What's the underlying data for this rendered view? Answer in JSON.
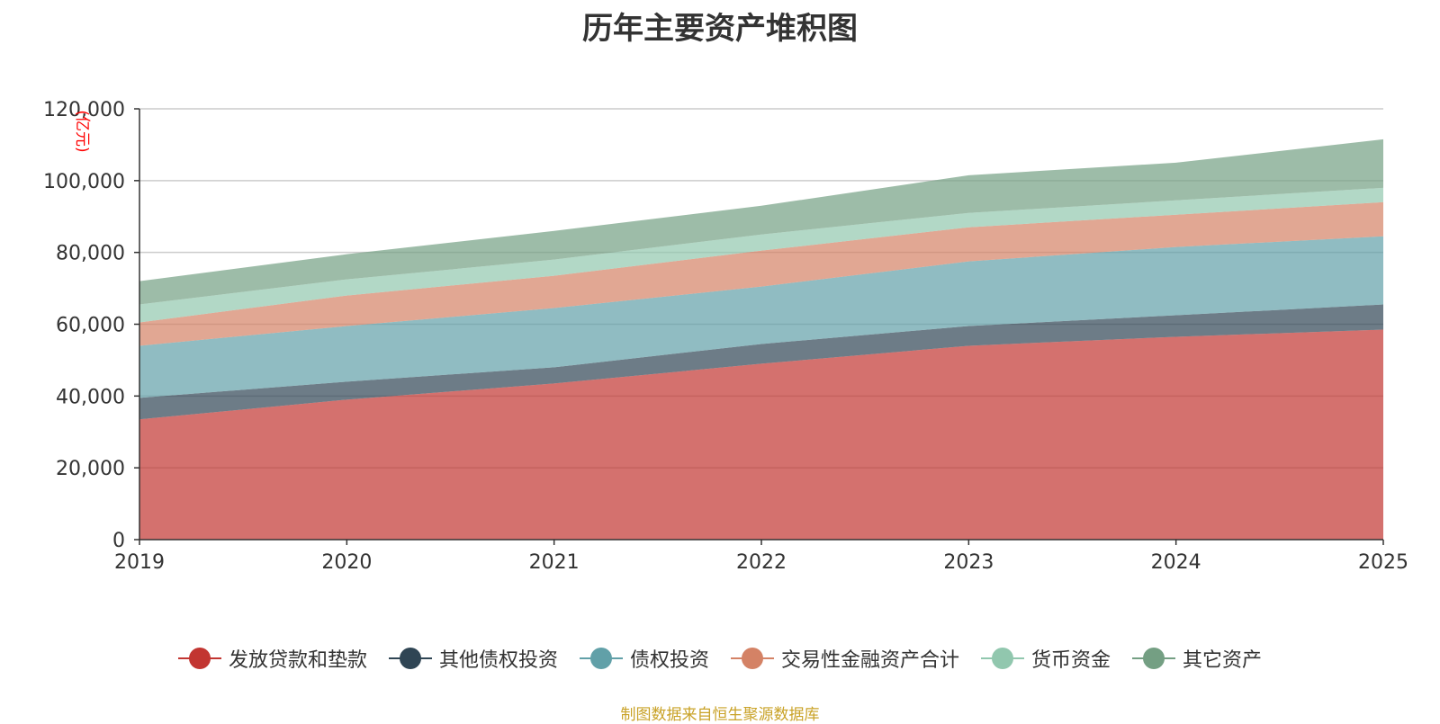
{
  "chart_data": {
    "type": "area",
    "stacked": true,
    "title": "历年主要资产堆积图",
    "ylabel": "(亿元)",
    "xlabel": "",
    "categories": [
      "2019",
      "2020",
      "2021",
      "2022",
      "2023",
      "2024",
      "2025"
    ],
    "ylim": [
      0,
      120000
    ],
    "yticks": [
      0,
      20000,
      40000,
      60000,
      80000,
      100000,
      120000
    ],
    "ytick_labels": [
      "0",
      "20,000",
      "40,000",
      "60,000",
      "80,000",
      "100,000",
      "120,000"
    ],
    "grid": true,
    "legend_position": "bottom",
    "series": [
      {
        "name": "发放贷款和垫款",
        "color": "#c23531",
        "values": [
          33500,
          39000,
          43500,
          49000,
          54000,
          56500,
          58500
        ]
      },
      {
        "name": "其他债权投资",
        "color": "#2f4554",
        "values": [
          6000,
          5000,
          4500,
          5500,
          5500,
          6000,
          7000
        ]
      },
      {
        "name": "债权投资",
        "color": "#61a0a8",
        "values": [
          14500,
          15500,
          16500,
          16000,
          18000,
          19000,
          19000
        ]
      },
      {
        "name": "交易性金融资产合计",
        "color": "#d48265",
        "values": [
          6500,
          8500,
          9000,
          10000,
          9500,
          9000,
          9500
        ]
      },
      {
        "name": "货币资金",
        "color": "#91c7ae",
        "values": [
          5000,
          4500,
          4500,
          4500,
          4000,
          4000,
          4000
        ]
      },
      {
        "name": "其它资产",
        "color": "#749f83",
        "values": [
          6500,
          7000,
          8000,
          8000,
          10500,
          10500,
          13500
        ]
      }
    ]
  },
  "source_note": "制图数据来自恒生聚源数据库"
}
